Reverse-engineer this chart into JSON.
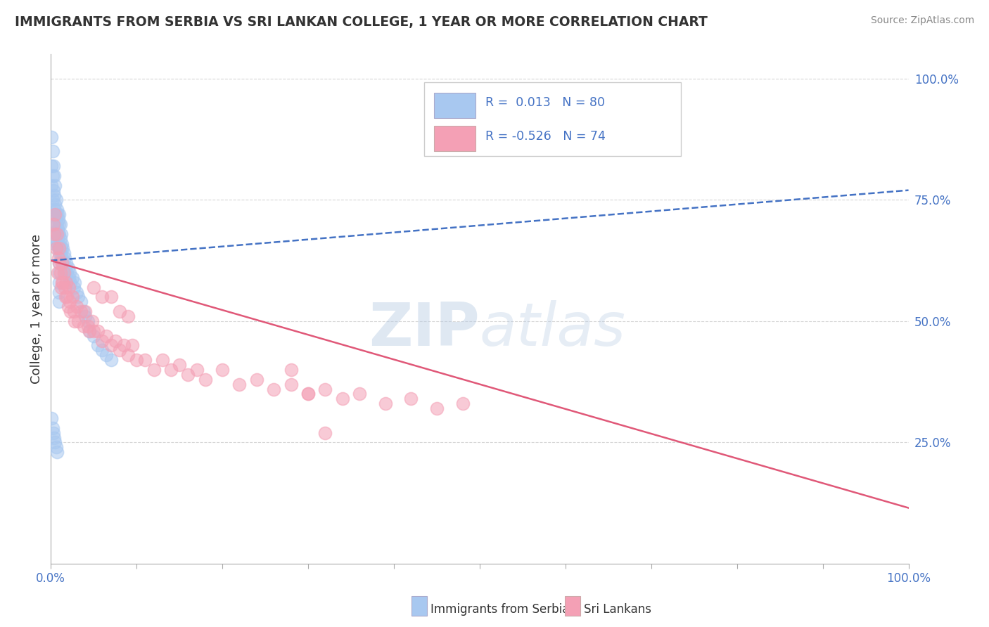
{
  "title": "IMMIGRANTS FROM SERBIA VS SRI LANKAN COLLEGE, 1 YEAR OR MORE CORRELATION CHART",
  "source": "Source: ZipAtlas.com",
  "ylabel": "College, 1 year or more",
  "legend_r1": "R =  0.013",
  "legend_n1": "N = 80",
  "legend_r2": "R = -0.526",
  "legend_n2": "N = 74",
  "blue_color": "#A8C8F0",
  "pink_color": "#F4A0B5",
  "blue_line_color": "#4472C4",
  "pink_line_color": "#E05878",
  "r_n_color": "#4472C4",
  "watermark_color": "#C5D8EC",
  "grid_color": "#CCCCCC",
  "bg_color": "#FFFFFF",
  "title_color": "#333333",
  "source_color": "#888888",
  "label_color": "#333333",
  "tick_color": "#4472C4",
  "blue_trend_y0": 0.625,
  "blue_trend_y1": 0.77,
  "pink_trend_y0": 0.625,
  "pink_trend_y1": 0.115,
  "xlim": [
    0.0,
    1.0
  ],
  "ylim": [
    0.0,
    1.05
  ],
  "serbia_x": [
    0.001,
    0.001,
    0.001,
    0.002,
    0.002,
    0.002,
    0.003,
    0.003,
    0.003,
    0.004,
    0.004,
    0.004,
    0.005,
    0.005,
    0.005,
    0.005,
    0.006,
    0.006,
    0.006,
    0.007,
    0.007,
    0.007,
    0.008,
    0.008,
    0.008,
    0.009,
    0.009,
    0.009,
    0.01,
    0.01,
    0.01,
    0.01,
    0.01,
    0.01,
    0.01,
    0.01,
    0.01,
    0.01,
    0.011,
    0.011,
    0.011,
    0.012,
    0.012,
    0.013,
    0.013,
    0.014,
    0.014,
    0.015,
    0.015,
    0.016,
    0.016,
    0.017,
    0.018,
    0.019,
    0.02,
    0.021,
    0.022,
    0.023,
    0.025,
    0.027,
    0.028,
    0.03,
    0.032,
    0.035,
    0.038,
    0.04,
    0.043,
    0.045,
    0.05,
    0.055,
    0.06,
    0.065,
    0.07,
    0.001,
    0.002,
    0.003,
    0.004,
    0.005,
    0.006,
    0.007
  ],
  "serbia_y": [
    0.88,
    0.82,
    0.78,
    0.85,
    0.8,
    0.75,
    0.82,
    0.77,
    0.72,
    0.8,
    0.76,
    0.73,
    0.78,
    0.74,
    0.7,
    0.66,
    0.75,
    0.72,
    0.68,
    0.73,
    0.7,
    0.67,
    0.72,
    0.69,
    0.66,
    0.71,
    0.68,
    0.65,
    0.72,
    0.7,
    0.68,
    0.66,
    0.64,
    0.62,
    0.6,
    0.58,
    0.56,
    0.54,
    0.7,
    0.67,
    0.64,
    0.68,
    0.65,
    0.66,
    0.63,
    0.65,
    0.62,
    0.64,
    0.61,
    0.63,
    0.6,
    0.61,
    0.62,
    0.6,
    0.61,
    0.59,
    0.6,
    0.58,
    0.59,
    0.57,
    0.58,
    0.56,
    0.55,
    0.54,
    0.52,
    0.51,
    0.5,
    0.48,
    0.47,
    0.45,
    0.44,
    0.43,
    0.42,
    0.3,
    0.28,
    0.27,
    0.26,
    0.25,
    0.24,
    0.23
  ],
  "srilanka_x": [
    0.003,
    0.004,
    0.005,
    0.006,
    0.007,
    0.008,
    0.009,
    0.01,
    0.01,
    0.011,
    0.012,
    0.013,
    0.013,
    0.014,
    0.015,
    0.016,
    0.017,
    0.018,
    0.019,
    0.02,
    0.021,
    0.022,
    0.023,
    0.025,
    0.027,
    0.028,
    0.03,
    0.032,
    0.035,
    0.038,
    0.04,
    0.043,
    0.045,
    0.048,
    0.05,
    0.055,
    0.06,
    0.065,
    0.07,
    0.075,
    0.08,
    0.085,
    0.09,
    0.095,
    0.1,
    0.11,
    0.12,
    0.13,
    0.14,
    0.15,
    0.16,
    0.17,
    0.18,
    0.2,
    0.22,
    0.24,
    0.26,
    0.28,
    0.3,
    0.32,
    0.34,
    0.36,
    0.39,
    0.42,
    0.45,
    0.48,
    0.05,
    0.06,
    0.07,
    0.08,
    0.09,
    0.28,
    0.3,
    0.32
  ],
  "srilanka_y": [
    0.7,
    0.68,
    0.72,
    0.65,
    0.68,
    0.6,
    0.63,
    0.65,
    0.62,
    0.6,
    0.57,
    0.62,
    0.58,
    0.58,
    0.6,
    0.57,
    0.55,
    0.58,
    0.55,
    0.53,
    0.57,
    0.54,
    0.52,
    0.55,
    0.52,
    0.5,
    0.53,
    0.5,
    0.52,
    0.49,
    0.52,
    0.49,
    0.48,
    0.5,
    0.48,
    0.48,
    0.46,
    0.47,
    0.45,
    0.46,
    0.44,
    0.45,
    0.43,
    0.45,
    0.42,
    0.42,
    0.4,
    0.42,
    0.4,
    0.41,
    0.39,
    0.4,
    0.38,
    0.4,
    0.37,
    0.38,
    0.36,
    0.37,
    0.35,
    0.36,
    0.34,
    0.35,
    0.33,
    0.34,
    0.32,
    0.33,
    0.57,
    0.55,
    0.55,
    0.52,
    0.51,
    0.4,
    0.35,
    0.27
  ],
  "legend_label1": "Immigrants from Serbia",
  "legend_label2": "Sri Lankans"
}
